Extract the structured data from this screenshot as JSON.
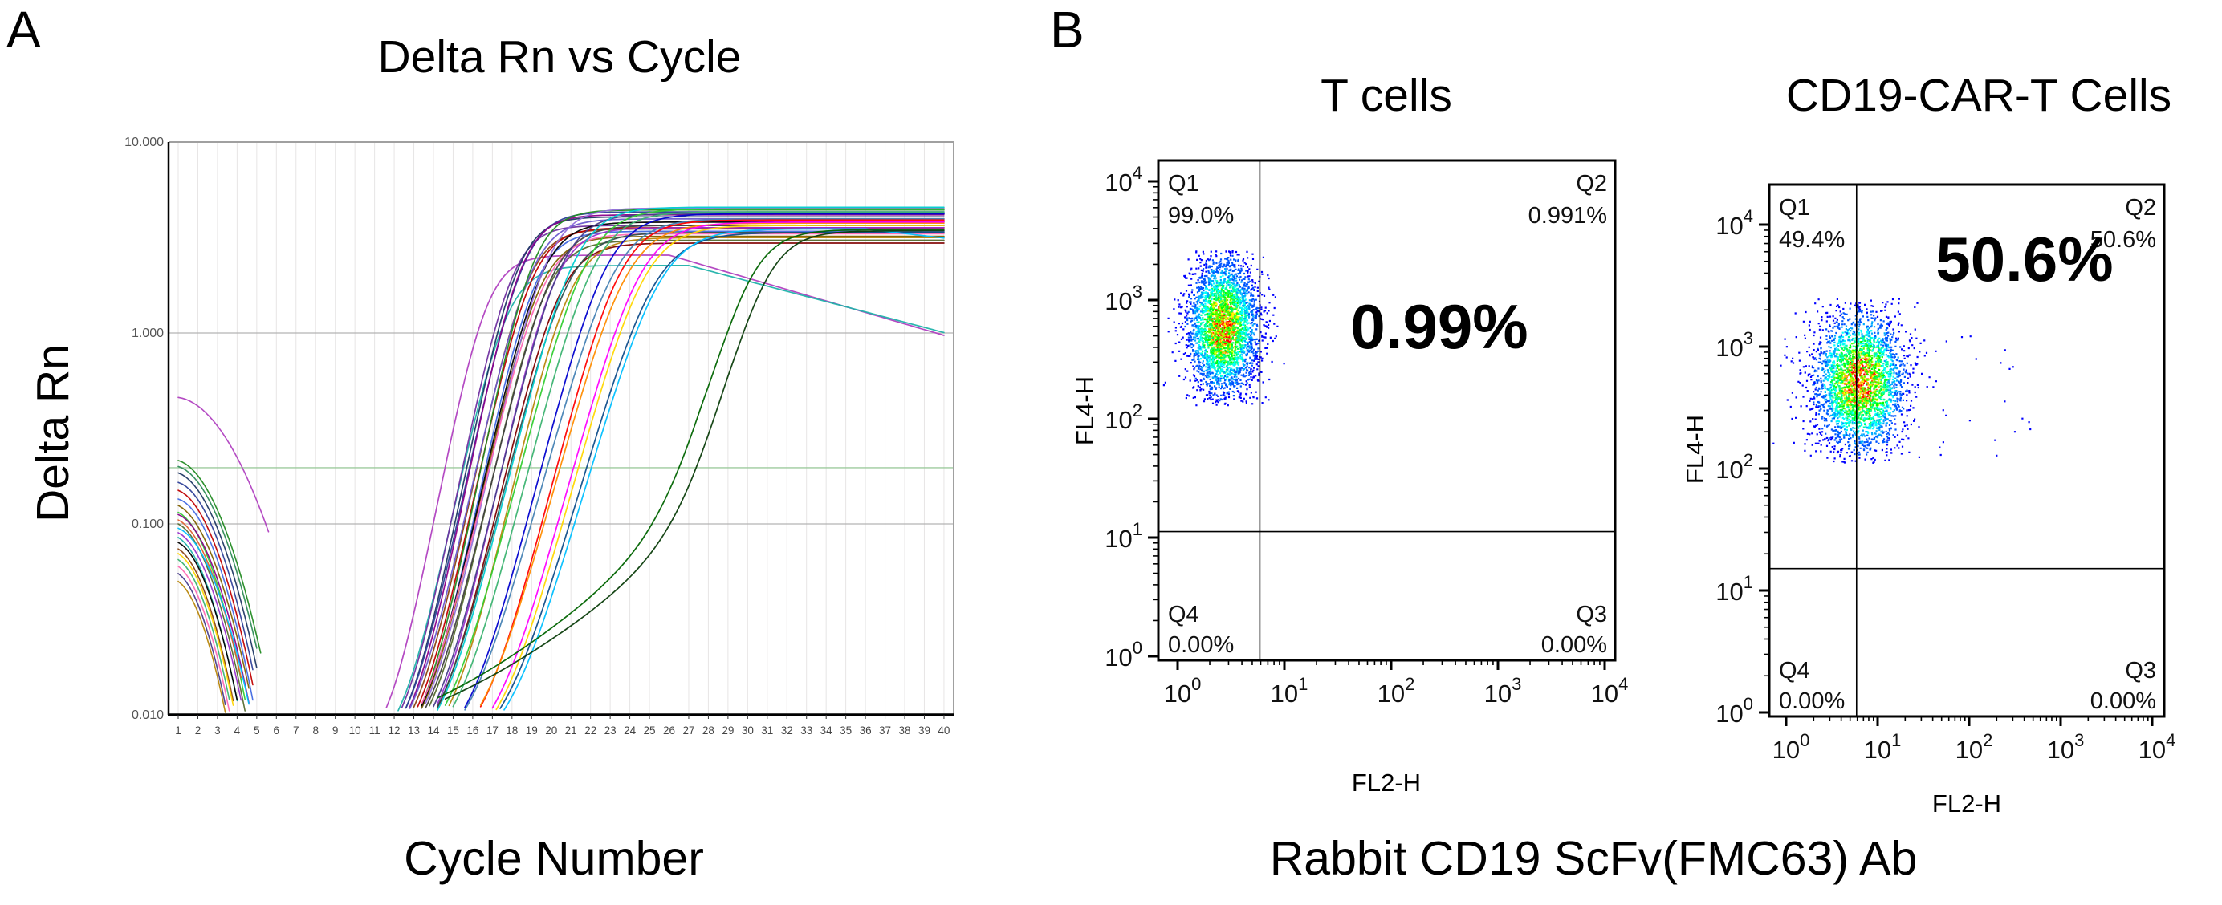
{
  "panels": {
    "a": {
      "label": "A"
    },
    "b": {
      "label": "B",
      "caption": "Rabbit CD19 ScFv(FMC63) Ab"
    }
  },
  "chart_data": [
    {
      "type": "line",
      "id": "qpcr-amplification",
      "title": "Delta Rn vs Cycle",
      "xlabel": "Cycle Number",
      "ylabel": "Delta Rn",
      "xlim": [
        1,
        40
      ],
      "ylim_log": [
        0.01,
        10
      ],
      "y_ticks": [
        {
          "label": "10.000",
          "value": 10
        },
        {
          "label": "1.000",
          "value": 1
        },
        {
          "label": "0.100",
          "value": 0.1
        },
        {
          "label": "0.010",
          "value": 0.01
        }
      ],
      "x_tick_step": 1,
      "grid": {
        "vertical_per_cycle": true,
        "horizontal_decades": [
          1,
          0.1
        ]
      },
      "threshold_line": {
        "value": 0.197,
        "color": "#9dcb9d"
      },
      "description": "~35 sigmoidal qPCR amplification curves, most crossing threshold at cycles 15-19, a red/orange pair ~21, blue/cyan pairs ~22-23, and two slow dark-green curves crossing ~26-27 reaching plateau ~3.3 by cycle 33; plateaus 2.9-4.6 Delta Rn; two early curves (violet, teal) hook downward after cycle 27 ending near 1.0 at cycle 40. Baseline decay curves drop from 0.05-0.46 at cycle 1 to below 0.01 by cycles 3.5-6.5.",
      "amplification_series": [
        {
          "color": "#b040c0",
          "mid": 16.6,
          "k": 1.25,
          "plateau": 2.55,
          "hook_start": 26,
          "hook_rate": 0.03
        },
        {
          "color": "#20b2aa",
          "mid": 17.6,
          "k": 1.15,
          "plateau": 2.25,
          "hook_start": 27,
          "hook_rate": 0.027
        },
        {
          "color": "#7030a0",
          "mid": 17.9,
          "k": 1.2,
          "plateau": 3.65
        },
        {
          "color": "#1f3864",
          "mid": 18.2,
          "k": 1.2,
          "plateau": 4.05
        },
        {
          "color": "#2e4099",
          "mid": 18.5,
          "k": 1.15,
          "plateau": 4.3
        },
        {
          "color": "#8b008b",
          "mid": 18.4,
          "k": 1.2,
          "plateau": 4.15
        },
        {
          "color": "#8b4513",
          "mid": 18.7,
          "k": 1.15,
          "plateau": 3.5
        },
        {
          "color": "#c00000",
          "mid": 18.9,
          "k": 1.15,
          "plateau": 3.55
        },
        {
          "color": "#6a5acd",
          "mid": 18.9,
          "k": 1.1,
          "plateau": 3.95
        },
        {
          "color": "#228b22",
          "mid": 19.0,
          "k": 1.2,
          "plateau": 4.4
        },
        {
          "color": "#4169e1",
          "mid": 19.1,
          "k": 1.15,
          "plateau": 3.4
        },
        {
          "color": "#7f6000",
          "mid": 19.3,
          "k": 1.1,
          "plateau": 3.2
        },
        {
          "color": "#000000",
          "mid": 19.4,
          "k": 1.1,
          "plateau": 3.8
        },
        {
          "color": "#9370db",
          "mid": 19.7,
          "k": 1.1,
          "plateau": 4.5
        },
        {
          "color": "#556b2f",
          "mid": 19.6,
          "k": 1.1,
          "plateau": 3.05
        },
        {
          "color": "#ff69b4",
          "mid": 19.5,
          "k": 1.05,
          "plateau": 3.3
        },
        {
          "color": "#404040",
          "mid": 19.9,
          "k": 1.05,
          "plateau": 3.65
        },
        {
          "color": "#9932cc",
          "mid": 20.1,
          "k": 1.1,
          "plateau": 3.55
        },
        {
          "color": "#800000",
          "mid": 20.3,
          "k": 1.05,
          "plateau": 2.95
        },
        {
          "color": "#483d8b",
          "mid": 20.4,
          "k": 1.05,
          "plateau": 4.2
        },
        {
          "color": "#b8860b",
          "mid": 20.9,
          "k": 1.05,
          "plateau": 3.15
        },
        {
          "color": "#2f4f4f",
          "mid": 20.7,
          "k": 1.0,
          "plateau": 3.35
        },
        {
          "color": "#00ced1",
          "mid": 21.1,
          "k": 1.0,
          "plateau": 4.55
        },
        {
          "color": "#32cd32",
          "mid": 21.7,
          "k": 0.95,
          "plateau": 4.45
        },
        {
          "color": "#3cb371",
          "mid": 22.1,
          "k": 0.95,
          "plateau": 4.3
        },
        {
          "color": "#0000cd",
          "mid": 22.7,
          "k": 0.95,
          "plateau": 4.2
        },
        {
          "color": "#4682b4",
          "mid": 23.1,
          "k": 0.9,
          "plateau": 3.95
        },
        {
          "color": "#ff0000",
          "mid": 23.4,
          "k": 0.95,
          "plateau": 3.9
        },
        {
          "color": "#ff8c00",
          "mid": 23.7,
          "k": 0.9,
          "plateau": 3.75
        },
        {
          "color": "#ff00ff",
          "mid": 24.4,
          "k": 0.9,
          "plateau": 3.8
        },
        {
          "color": "#ffd700",
          "mid": 24.6,
          "k": 0.9,
          "plateau": 3.65
        },
        {
          "color": "#104e8b",
          "mid": 25.1,
          "k": 0.85,
          "plateau": 3.35
        },
        {
          "color": "#00bfff",
          "mid": 25.4,
          "k": 0.85,
          "plateau": 3.5,
          "hook_start": 36,
          "hook_rate": 0.012
        },
        {
          "color": "#006400",
          "mid": 30.0,
          "k": 1.0,
          "plateau": 3.35,
          "drift_start": 14.0,
          "drift_slope": 0.095
        },
        {
          "color": "#0b3d0b",
          "mid": 30.8,
          "k": 1.0,
          "plateau": 3.3,
          "drift_start": 14.5,
          "drift_slope": 0.09
        }
      ],
      "baseline_series": [
        {
          "color": "#b040c0",
          "v1": 0.46,
          "a": 0.015,
          "b": 0.03,
          "end": 5.6
        },
        {
          "color": "#228b22",
          "v1": 0.215,
          "a": 0.03,
          "b": 0.05,
          "end": 5.2
        },
        {
          "color": "#2e8b57",
          "v1": 0.2,
          "a": 0.03,
          "b": 0.052,
          "end": 5.1
        },
        {
          "color": "#1f3864",
          "v1": 0.185,
          "a": 0.035,
          "b": 0.055,
          "end": 5.0
        },
        {
          "color": "#2e4099",
          "v1": 0.165,
          "a": 0.03,
          "b": 0.06,
          "end": 4.9
        },
        {
          "color": "#c00000",
          "v1": 0.15,
          "a": 0.04,
          "b": 0.06,
          "end": 4.8
        },
        {
          "color": "#4169e1",
          "v1": 0.135,
          "a": 0.03,
          "b": 0.065,
          "end": 5.8
        },
        {
          "color": "#7f6000",
          "v1": 0.125,
          "a": 0.05,
          "b": 0.06,
          "end": 4.6
        },
        {
          "color": "#32cd32",
          "v1": 0.115,
          "a": 0.05,
          "b": 0.07,
          "end": 4.5
        },
        {
          "color": "#8b008b",
          "v1": 0.112,
          "a": 0.04,
          "b": 0.065,
          "end": 4.6
        },
        {
          "color": "#e06030",
          "v1": 0.105,
          "a": 0.05,
          "b": 0.065,
          "end": 4.2
        },
        {
          "color": "#556b2f",
          "v1": 0.1,
          "a": 0.05,
          "b": 0.07,
          "end": 4.4
        },
        {
          "color": "#00bfff",
          "v1": 0.095,
          "a": 0.04,
          "b": 0.06,
          "end": 4.7
        },
        {
          "color": "#9932cc",
          "v1": 0.09,
          "a": 0.05,
          "b": 0.07,
          "end": 4.3
        },
        {
          "color": "#20b2aa",
          "v1": 0.085,
          "a": 0.06,
          "b": 0.075,
          "end": 4.2
        },
        {
          "color": "#000000",
          "v1": 0.08,
          "a": 0.05,
          "b": 0.075,
          "end": 4.2
        },
        {
          "color": "#8b4513",
          "v1": 0.074,
          "a": 0.06,
          "b": 0.08,
          "end": 4.0
        },
        {
          "color": "#ffd700",
          "v1": 0.07,
          "a": 0.06,
          "b": 0.08,
          "end": 4.0
        },
        {
          "color": "#3cb371",
          "v1": 0.065,
          "a": 0.06,
          "b": 0.085,
          "end": 3.9
        },
        {
          "color": "#ff69b4",
          "v1": 0.06,
          "a": 0.07,
          "b": 0.085,
          "end": 3.8
        },
        {
          "color": "#483d8b",
          "v1": 0.055,
          "a": 0.07,
          "b": 0.09,
          "end": 3.7
        },
        {
          "color": "#b8860b",
          "v1": 0.05,
          "a": 0.07,
          "b": 0.09,
          "end": 3.6
        }
      ]
    },
    {
      "type": "scatter",
      "id": "flow-t-cells",
      "title": "T cells",
      "xlabel": "FL2-H",
      "ylabel": "FL4-H",
      "xlim_log": [
        0,
        4
      ],
      "ylim_log": [
        0,
        4
      ],
      "gate_x_log": 0.77,
      "gate_y_log": 1.05,
      "big_label": "0.99%",
      "quadrants": [
        {
          "name": "Q1",
          "value": "99.0%"
        },
        {
          "name": "Q2",
          "value": "0.991%"
        },
        {
          "name": "Q3",
          "value": "0.00%"
        },
        {
          "name": "Q4",
          "value": "0.00%"
        }
      ],
      "cluster": {
        "n": 3200,
        "cx": 0.42,
        "cy": 2.78,
        "sdx": 0.17,
        "sdy": 0.3,
        "clip_x": [
          -0.15,
          1.05
        ],
        "clip_y": [
          2.12,
          3.42
        ],
        "seed": 11
      },
      "tail": {
        "n": 0
      }
    },
    {
      "type": "scatter",
      "id": "flow-cd19-car-t",
      "title": "CD19-CAR-T Cells",
      "xlabel": "FL2-H",
      "ylabel": "FL4-H",
      "xlim_log": [
        0,
        4
      ],
      "ylim_log": [
        0,
        4
      ],
      "gate_x_log": 0.77,
      "gate_y_log": 1.18,
      "big_label": "50.6%",
      "quadrants": [
        {
          "name": "Q1",
          "value": "49.4%"
        },
        {
          "name": "Q2",
          "value": "50.6%"
        },
        {
          "name": "Q3",
          "value": "0.00%"
        },
        {
          "name": "Q4",
          "value": "0.00%"
        }
      ],
      "cluster": {
        "n": 3000,
        "cx": 0.8,
        "cy": 2.72,
        "sdx": 0.26,
        "sdy": 0.3,
        "clip_x": [
          -0.15,
          1.8
        ],
        "clip_y": [
          2.05,
          3.4
        ],
        "seed": 29
      },
      "tail": {
        "n": 22,
        "x": [
          1.3,
          2.8
        ],
        "y": [
          2.1,
          3.1
        ],
        "seed": 5
      }
    }
  ]
}
